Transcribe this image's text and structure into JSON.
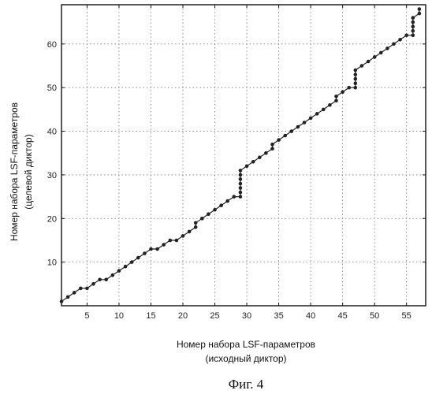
{
  "chart_data": {
    "type": "scatter",
    "xlabel_lines": [
      "Номер набора LSF-параметров",
      "(исходный диктор)"
    ],
    "ylabel_lines": [
      "Номер набора LSF-параметров",
      "(целевой диктор)"
    ],
    "caption": "Фиг. 4",
    "xlim": [
      1,
      58
    ],
    "ylim": [
      0,
      69
    ],
    "xticks": [
      5,
      10,
      15,
      20,
      25,
      30,
      35,
      40,
      45,
      50,
      55
    ],
    "yticks": [
      10,
      20,
      30,
      40,
      50,
      60
    ],
    "grid": true,
    "marker_color": "#222222",
    "line_color": "#222222",
    "series": [
      {
        "x": [
          1,
          2,
          3,
          4,
          5,
          6,
          7,
          8,
          9,
          10,
          11,
          12,
          13,
          14,
          15,
          16,
          17,
          18,
          19,
          20,
          21,
          22,
          22,
          23,
          24,
          25,
          26,
          27,
          28,
          29,
          29,
          29,
          29,
          29,
          29,
          29,
          30,
          31,
          32,
          33,
          34,
          34,
          35,
          36,
          37,
          38,
          39,
          40,
          41,
          42,
          43,
          44,
          44,
          45,
          46,
          47,
          47,
          47,
          47,
          47,
          48,
          49,
          50,
          51,
          52,
          53,
          54,
          55,
          56,
          56,
          56,
          56,
          56,
          57,
          57
        ],
        "y": [
          1,
          2,
          3,
          4,
          4,
          5,
          6,
          6,
          7,
          8,
          9,
          10,
          11,
          12,
          13,
          13,
          14,
          15,
          15,
          16,
          17,
          18,
          19,
          20,
          21,
          22,
          23,
          24,
          25,
          25,
          26,
          27,
          28,
          29,
          30,
          31,
          32,
          33,
          34,
          35,
          36,
          37,
          38,
          39,
          40,
          41,
          42,
          43,
          44,
          45,
          46,
          47,
          48,
          49,
          50,
          50,
          51,
          52,
          53,
          54,
          55,
          56,
          57,
          58,
          59,
          60,
          61,
          62,
          62,
          63,
          64,
          65,
          66,
          67,
          68
        ]
      }
    ]
  }
}
